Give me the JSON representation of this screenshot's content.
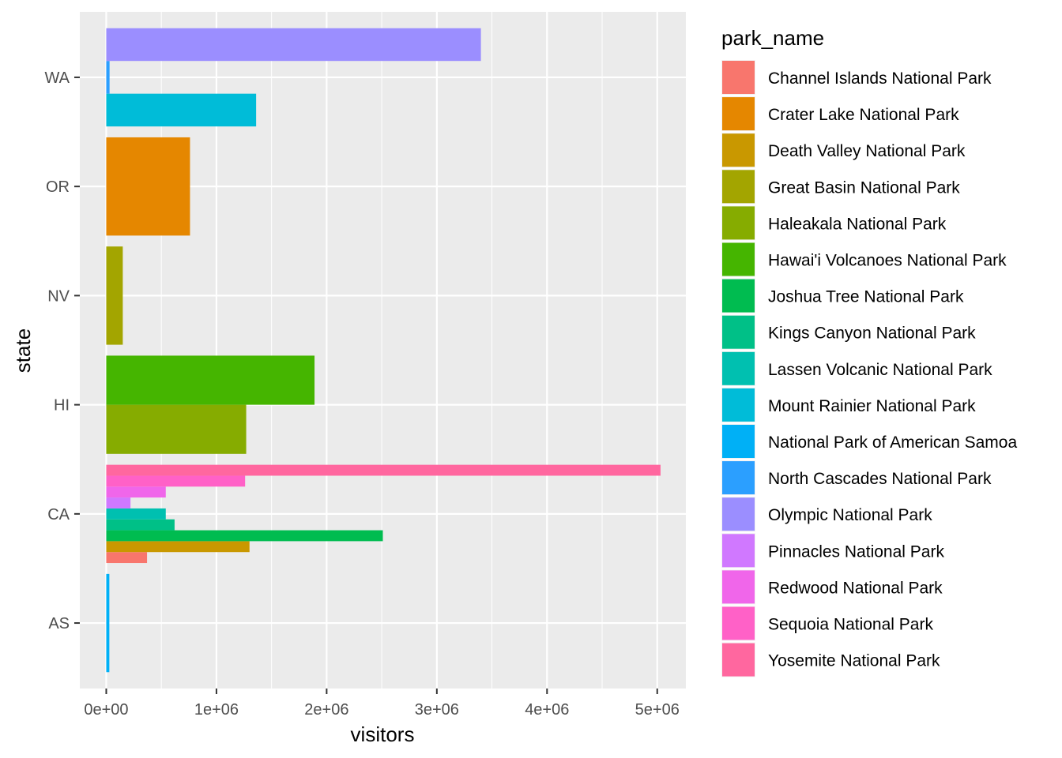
{
  "chart_data": {
    "type": "bar",
    "orientation": "horizontal",
    "position": "dodge",
    "xlabel": "visitors",
    "ylabel": "state",
    "xlim": [
      -240000,
      5260000
    ],
    "x_ticks": [
      0,
      1000000,
      2000000,
      3000000,
      4000000,
      5000000
    ],
    "x_tick_labels": [
      "0e+00",
      "1e+06",
      "2e+06",
      "3e+06",
      "4e+06",
      "5e+06"
    ],
    "categories": [
      "AS",
      "CA",
      "HI",
      "NV",
      "OR",
      "WA"
    ],
    "grid": true,
    "background": "#ebebeb",
    "legend": {
      "title": "park_name",
      "placement": "right",
      "items": [
        {
          "name": "Channel Islands National Park",
          "color": "#F8766D"
        },
        {
          "name": "Crater Lake National Park",
          "color": "#E58700"
        },
        {
          "name": "Death Valley National Park",
          "color": "#C99800"
        },
        {
          "name": "Great Basin National Park",
          "color": "#A3A500"
        },
        {
          "name": "Haleakala National Park",
          "color": "#86AC00"
        },
        {
          "name": "Hawai'i Volcanoes National Park",
          "color": "#45B500"
        },
        {
          "name": "Joshua Tree National Park",
          "color": "#00BC50"
        },
        {
          "name": "Kings Canyon National Park",
          "color": "#00C087"
        },
        {
          "name": "Lassen Volcanic National Park",
          "color": "#00C0B0"
        },
        {
          "name": "Mount Rainier National Park",
          "color": "#00BCD8"
        },
        {
          "name": "National Park of American Samoa",
          "color": "#00B0F6"
        },
        {
          "name": "North Cascades National Park",
          "color": "#2B9FFF"
        },
        {
          "name": "Olympic National Park",
          "color": "#9B8EFF"
        },
        {
          "name": "Pinnacles National Park",
          "color": "#D078FF"
        },
        {
          "name": "Redwood National Park",
          "color": "#F066EA"
        },
        {
          "name": "Sequoia National Park",
          "color": "#FF61C7"
        },
        {
          "name": "Yosemite National Park",
          "color": "#FF679F"
        }
      ]
    },
    "series": [
      {
        "state": "AS",
        "parks": [
          {
            "park": "National Park of American Samoa",
            "value": 28000
          }
        ]
      },
      {
        "state": "CA",
        "parks": [
          {
            "park": "Channel Islands National Park",
            "value": 370000
          },
          {
            "park": "Death Valley National Park",
            "value": 1300000
          },
          {
            "park": "Joshua Tree National Park",
            "value": 2510000
          },
          {
            "park": "Kings Canyon National Park",
            "value": 620000
          },
          {
            "park": "Lassen Volcanic National Park",
            "value": 540000
          },
          {
            "park": "Pinnacles National Park",
            "value": 220000
          },
          {
            "park": "Redwood National Park",
            "value": 540000
          },
          {
            "park": "Sequoia National Park",
            "value": 1260000
          },
          {
            "park": "Yosemite National Park",
            "value": 5030000
          }
        ]
      },
      {
        "state": "HI",
        "parks": [
          {
            "park": "Haleakala National Park",
            "value": 1270000
          },
          {
            "park": "Hawai'i Volcanoes National Park",
            "value": 1890000
          }
        ]
      },
      {
        "state": "NV",
        "parks": [
          {
            "park": "Great Basin National Park",
            "value": 150000
          }
        ]
      },
      {
        "state": "OR",
        "parks": [
          {
            "park": "Crater Lake National Park",
            "value": 760000
          }
        ]
      },
      {
        "state": "WA",
        "parks": [
          {
            "park": "Mount Rainier National Park",
            "value": 1360000
          },
          {
            "park": "North Cascades National Park",
            "value": 30000
          },
          {
            "park": "Olympic National Park",
            "value": 3400000
          }
        ]
      }
    ]
  }
}
